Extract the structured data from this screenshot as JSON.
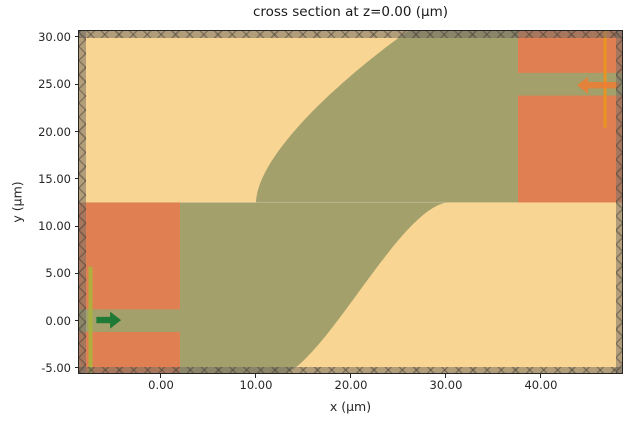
{
  "figure": {
    "title": "cross section at z=0.00 (μm)",
    "xlabel": "x (μm)",
    "ylabel": "y (μm)"
  },
  "chart_data": {
    "type": "area",
    "subtype": "fdtd-simulation-cross-section",
    "title": "cross section at z=0.00 (μm)",
    "xlabel": "x (μm)",
    "ylabel": "y (μm)",
    "xlim": [
      -8.63,
      48.53
    ],
    "ylim": [
      -5.54,
      30.63
    ],
    "grid": false,
    "legend": null,
    "x_ticks": [
      {
        "value": 0,
        "label": "0.00"
      },
      {
        "value": 10,
        "label": "10.00"
      },
      {
        "value": 20,
        "label": "20.00"
      },
      {
        "value": 30,
        "label": "30.00"
      },
      {
        "value": 40,
        "label": "40.00"
      }
    ],
    "y_ticks": [
      {
        "value": 30,
        "label": "30.00"
      },
      {
        "value": 25,
        "label": "25.00"
      },
      {
        "value": 20,
        "label": "20.00"
      },
      {
        "value": 15,
        "label": "15.00"
      },
      {
        "value": 10,
        "label": "10.00"
      },
      {
        "value": 5,
        "label": "5.00"
      },
      {
        "value": 0,
        "label": "0.00"
      },
      {
        "value": -5,
        "label": "-5.00"
      }
    ],
    "colors": {
      "background_medium": "#f8d592",
      "structure_olive": "#a3a06c",
      "port_box_orange": "#e08052",
      "source_green": "#1e7a35",
      "source_plane": "rgba(170,180,60,0.9)",
      "monitor_plane": "#e8941f",
      "monitor_arrow": "rgba(238,124,51,0.85)",
      "pml_base": "rgba(118,112,102,0.55)",
      "pml_hatch": "rgba(60,56,50,0.42)",
      "axes": "#262626"
    },
    "structures": [
      {
        "name": "background-medium",
        "type": "rect",
        "x": [
          -8.63,
          48.53
        ],
        "y": [
          -5.54,
          30.63
        ],
        "color": "#f8d592"
      },
      {
        "name": "input-port-box",
        "type": "rect",
        "x": [
          -8.63,
          2.0
        ],
        "y": [
          -5.54,
          12.5
        ],
        "color": "#e08052"
      },
      {
        "name": "output-port-box",
        "type": "rect",
        "x": [
          37.58,
          48.53
        ],
        "y": [
          12.5,
          30.63
        ],
        "color": "#e08052"
      },
      {
        "name": "sbend-structure",
        "type": "path",
        "color": "#a3a06c",
        "segments": [
          [
            "M",
            2.0,
            -5.54
          ],
          [
            "L",
            2.0,
            12.5
          ],
          [
            "L",
            10.0,
            12.5
          ],
          [
            "C",
            10.2,
            17.85,
            19.7,
            26.1,
            26.0,
            30.63
          ],
          [
            "L",
            37.58,
            30.63
          ],
          [
            "L",
            37.58,
            12.5
          ],
          [
            "L",
            30.1,
            12.5
          ],
          [
            "C",
            25.2,
            11.7,
            18.3,
            -2.56,
            13.37,
            -5.54
          ],
          [
            "Z"
          ]
        ]
      },
      {
        "name": "input-waveguide",
        "type": "rect",
        "x": [
          -8.63,
          2.05
        ],
        "y": [
          -1.2,
          1.2
        ],
        "color": "#a3a06c"
      },
      {
        "name": "output-waveguide",
        "type": "rect",
        "x": [
          37.58,
          48.53
        ],
        "y": [
          23.8,
          26.2
        ],
        "color": "#a3a06c"
      },
      {
        "name": "structure-seam",
        "type": "hline",
        "y": 12.5,
        "x": [
          2.0,
          30.0
        ],
        "color": "rgba(255,255,255,0.22)",
        "px": 1
      },
      {
        "name": "mode-source-plane",
        "type": "vline",
        "x": -7.42,
        "y": [
          -5.54,
          5.7
        ],
        "color": "rgba(170,180,60,0.9)",
        "px": 4
      },
      {
        "name": "mode-monitor-plane",
        "type": "vline",
        "x": 46.75,
        "y": [
          20.4,
          30.63
        ],
        "color": "#e8941f",
        "px": 3
      },
      {
        "name": "source-direction-arrow",
        "type": "arrow",
        "y": 0.05,
        "x_tail": -6.8,
        "x_tip": -4.2,
        "color": "#1e7a35"
      },
      {
        "name": "monitor-direction-arrow",
        "type": "arrow",
        "y": 24.9,
        "x_tail": 48.2,
        "x_tip": 43.8,
        "color": "rgba(238,124,51,0.85)"
      }
    ]
  }
}
